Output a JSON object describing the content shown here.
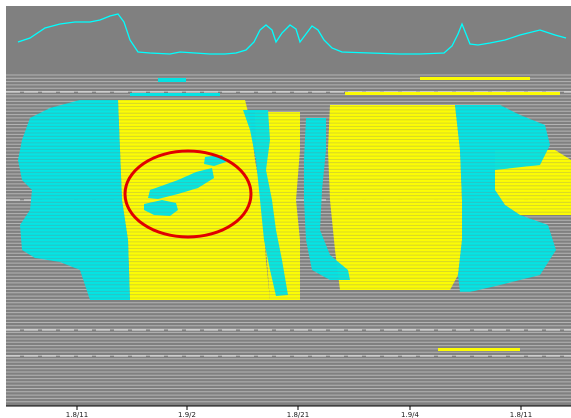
{
  "colors": {
    "background": "#808080",
    "stripe": "#b4b4b4",
    "yellow": "#ffff00",
    "cyan": "#00e5e5",
    "profile": "#00ffff",
    "highlight_circle": "#e00000",
    "page": "#ffffff",
    "tick_text": "#222222"
  },
  "x_axis": {
    "tick_labels": [
      "1.8/11",
      "1.9/2",
      "1.8/21",
      "1.9/4",
      "1.8/11"
    ]
  }
}
